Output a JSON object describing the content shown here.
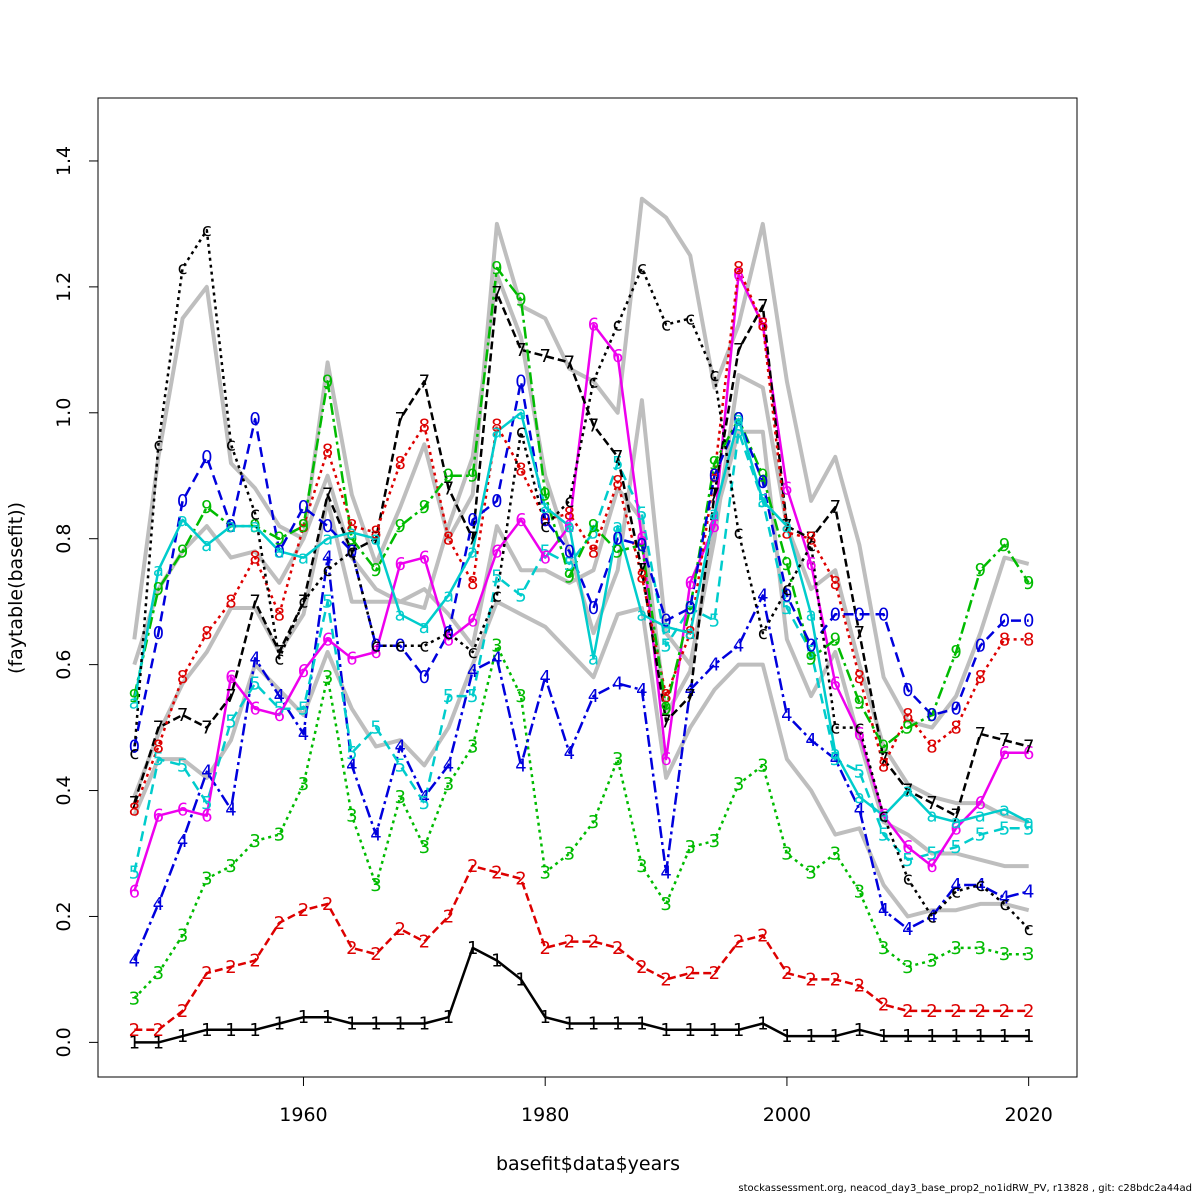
{
  "chart_data": {
    "type": "line",
    "title": "",
    "xlabel": "basefit$data$years",
    "ylabel": "(faytable(basefit))",
    "xlim": [
      1943,
      2024
    ],
    "ylim": [
      -0.055,
      1.5
    ],
    "xticks": [
      1960,
      1980,
      2000,
      2020
    ],
    "yticks": [
      0.0,
      0.2,
      0.4,
      0.6,
      0.8,
      1.0,
      1.2,
      1.4
    ],
    "ytick_labels": [
      "0.0",
      "0.2",
      "0.4",
      "0.6",
      "0.8",
      "1.0",
      "1.2",
      "1.4"
    ],
    "grid": false,
    "legend": "none",
    "x": [
      1946,
      1948,
      1950,
      1952,
      1954,
      1956,
      1958,
      1960,
      1962,
      1964,
      1966,
      1968,
      1970,
      1972,
      1974,
      1976,
      1978,
      1980,
      1982,
      1984,
      1986,
      1988,
      1990,
      1992,
      1994,
      1996,
      1998,
      2000,
      2002,
      2004,
      2006,
      2008,
      2010,
      2012,
      2014,
      2016,
      2018,
      2020
    ],
    "series": [
      {
        "label": "1",
        "color": "#000000",
        "dash": "",
        "values": [
          0.0,
          0.0,
          0.01,
          0.02,
          0.02,
          0.02,
          0.03,
          0.04,
          0.04,
          0.03,
          0.03,
          0.03,
          0.03,
          0.04,
          0.15,
          0.13,
          0.1,
          0.04,
          0.03,
          0.03,
          0.03,
          0.03,
          0.02,
          0.02,
          0.02,
          0.02,
          0.03,
          0.01,
          0.01,
          0.01,
          0.02,
          0.01,
          0.01,
          0.01,
          0.01,
          0.01,
          0.01,
          0.01
        ]
      },
      {
        "label": "2",
        "color": "#dd0000",
        "dash": "8 4",
        "values": [
          0.02,
          0.02,
          0.05,
          0.11,
          0.12,
          0.13,
          0.19,
          0.21,
          0.22,
          0.15,
          0.14,
          0.18,
          0.16,
          0.2,
          0.28,
          0.27,
          0.26,
          0.15,
          0.16,
          0.16,
          0.15,
          0.12,
          0.1,
          0.11,
          0.11,
          0.16,
          0.17,
          0.11,
          0.1,
          0.1,
          0.09,
          0.06,
          0.05,
          0.05,
          0.05,
          0.05,
          0.05,
          0.05
        ]
      },
      {
        "label": "3",
        "color": "#00bb00",
        "dash": "3 4",
        "values": [
          0.07,
          0.11,
          0.17,
          0.26,
          0.28,
          0.32,
          0.33,
          0.41,
          0.58,
          0.36,
          0.25,
          0.39,
          0.31,
          0.41,
          0.47,
          0.63,
          0.55,
          0.27,
          0.3,
          0.35,
          0.45,
          0.28,
          0.22,
          0.31,
          0.32,
          0.41,
          0.44,
          0.3,
          0.27,
          0.3,
          0.24,
          0.15,
          0.12,
          0.13,
          0.15,
          0.15,
          0.14,
          0.14
        ]
      },
      {
        "label": "4",
        "color": "#0000dd",
        "dash": "12 4 3 4",
        "values": [
          0.13,
          0.22,
          0.32,
          0.43,
          0.37,
          0.61,
          0.55,
          0.49,
          0.77,
          0.44,
          0.33,
          0.47,
          0.39,
          0.44,
          0.59,
          0.61,
          0.44,
          0.58,
          0.46,
          0.55,
          0.57,
          0.56,
          0.27,
          0.56,
          0.6,
          0.63,
          0.71,
          0.52,
          0.48,
          0.45,
          0.37,
          0.21,
          0.18,
          0.2,
          0.25,
          0.25,
          0.23,
          0.24
        ]
      },
      {
        "label": "5",
        "color": "#00cccc",
        "dash": "10 6",
        "values": [
          0.27,
          0.45,
          0.44,
          0.38,
          0.51,
          0.57,
          0.53,
          0.53,
          0.7,
          0.46,
          0.5,
          0.44,
          0.38,
          0.55,
          0.55,
          0.74,
          0.71,
          0.78,
          0.76,
          0.81,
          0.92,
          0.84,
          0.63,
          0.69,
          0.67,
          0.97,
          0.86,
          0.69,
          0.62,
          0.45,
          0.43,
          0.33,
          0.29,
          0.3,
          0.31,
          0.33,
          0.34,
          0.34
        ]
      },
      {
        "label": "6",
        "color": "#ee00ee",
        "dash": "",
        "values": [
          0.24,
          0.36,
          0.37,
          0.36,
          0.58,
          0.53,
          0.52,
          0.59,
          0.64,
          0.61,
          0.62,
          0.76,
          0.77,
          0.64,
          0.67,
          0.78,
          0.83,
          0.77,
          0.82,
          1.14,
          1.09,
          0.8,
          0.45,
          0.73,
          0.82,
          1.22,
          1.14,
          0.88,
          0.76,
          0.57,
          0.49,
          0.36,
          0.31,
          0.28,
          0.34,
          0.38,
          0.46,
          0.46
        ]
      },
      {
        "label": "7",
        "color": "#000000",
        "dash": "8 4",
        "values": [
          0.38,
          0.5,
          0.52,
          0.5,
          0.55,
          0.7,
          0.62,
          0.7,
          0.87,
          0.78,
          0.8,
          0.99,
          1.05,
          0.88,
          0.8,
          1.19,
          1.1,
          1.09,
          1.08,
          0.98,
          0.93,
          0.75,
          0.51,
          0.55,
          0.87,
          1.1,
          1.17,
          0.82,
          0.8,
          0.85,
          0.65,
          0.45,
          0.4,
          0.38,
          0.36,
          0.49,
          0.48,
          0.47
        ]
      },
      {
        "label": "8",
        "color": "#dd0000",
        "dash": "3 4",
        "values": [
          0.37,
          0.47,
          0.58,
          0.65,
          0.7,
          0.77,
          0.68,
          0.82,
          0.94,
          0.82,
          0.81,
          0.92,
          0.98,
          0.8,
          0.73,
          0.98,
          0.91,
          0.83,
          0.84,
          0.78,
          0.89,
          0.74,
          0.55,
          0.65,
          0.9,
          1.23,
          1.14,
          0.81,
          0.8,
          0.73,
          0.58,
          0.44,
          0.52,
          0.47,
          0.5,
          0.58,
          0.64,
          0.64
        ]
      },
      {
        "label": "9",
        "color": "#00bb00",
        "dash": "12 4 3 4",
        "values": [
          0.55,
          0.72,
          0.78,
          0.85,
          0.82,
          0.82,
          0.8,
          0.82,
          1.05,
          0.8,
          0.75,
          0.82,
          0.85,
          0.9,
          0.9,
          1.23,
          1.18,
          0.87,
          0.74,
          0.82,
          0.78,
          0.79,
          0.53,
          0.69,
          0.92,
          0.99,
          0.9,
          0.76,
          0.61,
          0.64,
          0.54,
          0.47,
          0.5,
          0.52,
          0.62,
          0.75,
          0.79,
          0.73
        ]
      },
      {
        "label": "0",
        "color": "#0000dd",
        "dash": "10 6",
        "values": [
          0.47,
          0.65,
          0.86,
          0.93,
          0.82,
          0.99,
          0.78,
          0.85,
          0.82,
          0.78,
          0.63,
          0.63,
          0.58,
          0.65,
          0.83,
          0.86,
          1.05,
          0.83,
          0.78,
          0.69,
          0.8,
          0.79,
          0.67,
          0.69,
          0.9,
          0.99,
          0.89,
          0.71,
          0.63,
          0.68,
          0.68,
          0.68,
          0.56,
          0.52,
          0.53,
          0.63,
          0.67,
          0.67
        ]
      },
      {
        "label": "a",
        "color": "#00cccc",
        "dash": "",
        "values": [
          0.54,
          0.75,
          0.83,
          0.79,
          0.82,
          0.82,
          0.78,
          0.77,
          0.8,
          0.81,
          0.8,
          0.68,
          0.66,
          0.71,
          0.78,
          0.97,
          1.0,
          0.85,
          0.82,
          0.61,
          0.82,
          0.68,
          0.66,
          0.65,
          0.84,
          0.99,
          0.86,
          0.82,
          0.68,
          0.46,
          0.39,
          0.36,
          0.4,
          0.36,
          0.35,
          0.36,
          0.37,
          0.35
        ]
      },
      {
        "label": "c",
        "color": "#000000",
        "dash": "3 4",
        "values": [
          0.46,
          0.95,
          1.23,
          1.29,
          0.95,
          0.84,
          0.61,
          0.7,
          0.75,
          0.78,
          0.63,
          0.63,
          0.63,
          0.65,
          0.62,
          0.71,
          0.97,
          0.82,
          0.86,
          1.05,
          1.14,
          1.23,
          1.14,
          1.15,
          1.06,
          0.81,
          0.65,
          0.72,
          0.79,
          0.5,
          0.5,
          0.36,
          0.26,
          0.2,
          0.24,
          0.25,
          0.22,
          0.18
        ]
      }
    ],
    "grey_lines": [
      {
        "values": [
          0.64,
          0.93,
          1.15,
          1.2,
          0.92,
          0.88,
          0.82,
          0.8,
          1.08,
          0.87,
          0.76,
          0.85,
          0.95,
          0.8,
          0.87,
          1.3,
          1.17,
          1.15,
          1.07,
          1.05,
          1.0,
          1.34,
          1.31,
          1.25,
          1.04,
          1.14,
          1.3,
          1.05,
          0.86,
          0.93,
          0.79,
          0.58,
          0.51,
          0.5,
          0.55,
          0.65,
          0.77,
          0.76
        ]
      },
      {
        "values": [
          0.6,
          0.72,
          0.78,
          0.82,
          0.77,
          0.78,
          0.73,
          0.8,
          0.9,
          0.77,
          0.72,
          0.7,
          0.69,
          0.82,
          0.93,
          1.22,
          1.12,
          0.9,
          0.78,
          0.65,
          0.75,
          1.02,
          0.65,
          0.6,
          0.8,
          1.06,
          1.04,
          0.82,
          0.72,
          0.75,
          0.6,
          0.47,
          0.41,
          0.39,
          0.38,
          0.38,
          0.36,
          0.35
        ]
      },
      {
        "values": [
          0.39,
          0.49,
          0.57,
          0.62,
          0.69,
          0.69,
          0.62,
          0.68,
          0.86,
          0.7,
          0.7,
          0.7,
          0.72,
          0.68,
          0.63,
          0.82,
          0.75,
          0.75,
          0.73,
          0.75,
          0.88,
          0.83,
          0.52,
          0.59,
          0.83,
          0.97,
          0.97,
          0.64,
          0.55,
          0.62,
          0.48,
          0.35,
          0.33,
          0.3,
          0.3,
          0.29,
          0.28,
          0.28
        ]
      },
      {
        "values": [
          0.36,
          0.45,
          0.45,
          0.42,
          0.48,
          0.6,
          0.56,
          0.52,
          0.62,
          0.53,
          0.47,
          0.48,
          0.44,
          0.5,
          0.6,
          0.7,
          0.68,
          0.66,
          0.62,
          0.58,
          0.68,
          0.69,
          0.42,
          0.5,
          0.56,
          0.6,
          0.6,
          0.45,
          0.4,
          0.33,
          0.34,
          0.25,
          0.2,
          0.21,
          0.21,
          0.22,
          0.22,
          0.21
        ]
      }
    ]
  },
  "credit": "stockassessment.org, neacod_day3_base_prop2_no1idRW_PV, r13828 , git: c28bdc2a44ad"
}
